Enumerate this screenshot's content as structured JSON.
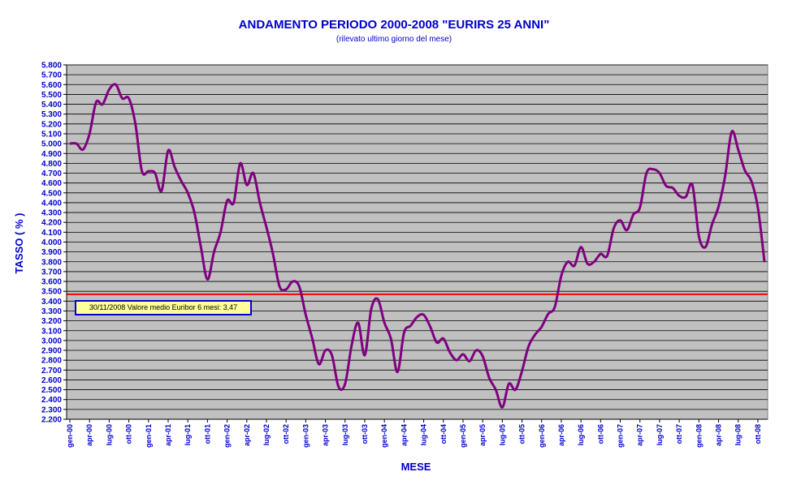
{
  "chart_data": {
    "type": "line",
    "title": "ANDAMENTO PERIODO 2000-2008 \"EURIRS 25 ANNI\"",
    "subtitle": "(rilevato ultimo giorno del mese)",
    "xlabel": "MESE",
    "ylabel": "TASSO ( % )",
    "ylim": [
      2.2,
      5.8
    ],
    "grid": true,
    "y_ticks": [
      "5.800",
      "5.700",
      "5.600",
      "5.500",
      "5.400",
      "5.300",
      "5.200",
      "5.100",
      "5.000",
      "4.900",
      "4.800",
      "4.700",
      "4.600",
      "4.500",
      "4.400",
      "4.300",
      "4.200",
      "4.100",
      "4.000",
      "3.900",
      "3.800",
      "3.700",
      "3.600",
      "3.500",
      "3.400",
      "3.300",
      "3.200",
      "3.100",
      "3.000",
      "2.900",
      "2.800",
      "2.700",
      "2.600",
      "2.500",
      "2.400",
      "2.300",
      "2.200"
    ],
    "x_ticks": [
      "gen-00",
      "apr-00",
      "lug-00",
      "ott-00",
      "gen-01",
      "apr-01",
      "lug-01",
      "ott-01",
      "gen-02",
      "apr-02",
      "lug-02",
      "ott-02",
      "gen-03",
      "apr-03",
      "lug-03",
      "ott-03",
      "gen-04",
      "apr-04",
      "lug-04",
      "ott-04",
      "gen-05",
      "apr-05",
      "lug-05",
      "ott-05",
      "gen-06",
      "apr-06",
      "lug-06",
      "ott-06",
      "gen-07",
      "apr-07",
      "lug-07",
      "ott-07",
      "gen-08",
      "apr-08",
      "lug-08",
      "ott-08"
    ],
    "series": [
      {
        "color": "#800080",
        "values": [
          5.0,
          5.0,
          4.94,
          5.1,
          5.42,
          5.4,
          5.55,
          5.6,
          5.46,
          5.46,
          5.2,
          4.72,
          4.72,
          4.7,
          4.52,
          4.93,
          4.76,
          4.62,
          4.5,
          4.3,
          3.95,
          3.62,
          3.9,
          4.1,
          4.42,
          4.4,
          4.8,
          4.58,
          4.7,
          4.4,
          4.15,
          3.88,
          3.55,
          3.52,
          3.6,
          3.55,
          3.26,
          3.02,
          2.76,
          2.9,
          2.85,
          2.53,
          2.56,
          2.95,
          3.18,
          2.85,
          3.32,
          3.42,
          3.18,
          3.02,
          2.68,
          3.08,
          3.15,
          3.24,
          3.26,
          3.14,
          2.98,
          3.02,
          2.88,
          2.8,
          2.86,
          2.79,
          2.9,
          2.84,
          2.62,
          2.5,
          2.32,
          2.56,
          2.5,
          2.69,
          2.94,
          3.06,
          3.14,
          3.27,
          3.34,
          3.66,
          3.8,
          3.76,
          3.95,
          3.78,
          3.8,
          3.88,
          3.86,
          4.14,
          4.22,
          4.12,
          4.28,
          4.35,
          4.7,
          4.74,
          4.7,
          4.57,
          4.55,
          4.47,
          4.46,
          4.58,
          4.06,
          3.95,
          4.18,
          4.36,
          4.67,
          5.12,
          4.94,
          4.73,
          4.62,
          4.35,
          3.8
        ]
      }
    ],
    "reference_line": {
      "value": 3.47,
      "color": "#ff0000"
    },
    "annotation": "30/11/2008 Valore medio Euribor 6 mesi: 3,47",
    "colors": {
      "plot_bg": "#c0c0c0",
      "text": "#0000cc",
      "grid": "#000000"
    }
  }
}
